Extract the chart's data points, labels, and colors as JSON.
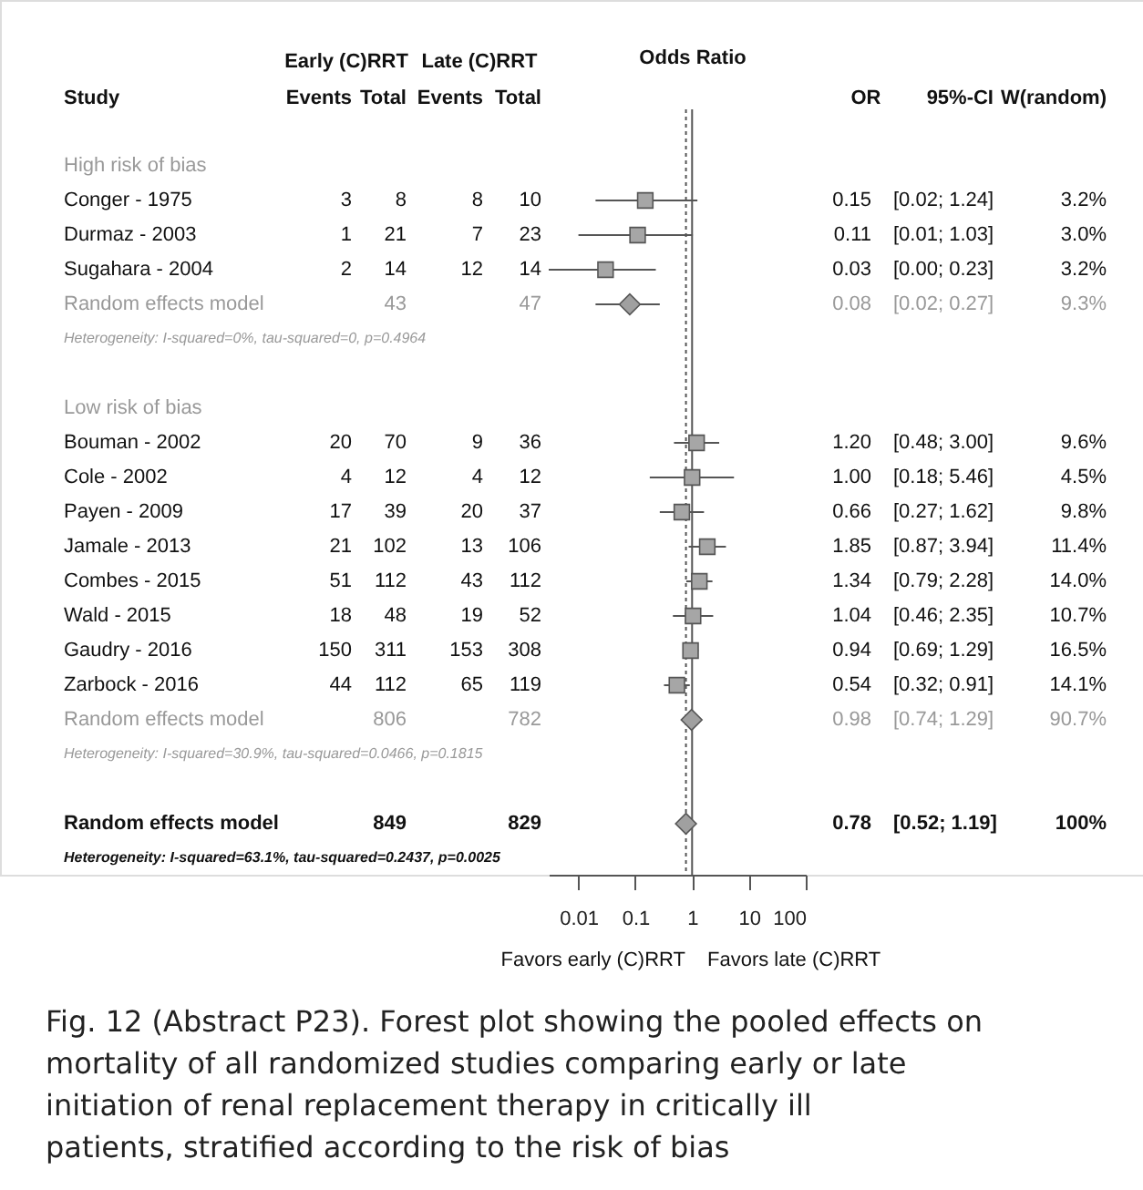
{
  "chart_data": {
    "type": "scatter",
    "categories": [
      "High risk of bias",
      "Conger - 1975",
      "Durmaz - 2003",
      "Sugahara - 2004",
      "Random effects model",
      "Heterogeneity: I-squared=0%, tau-squared=0, p=0.4964",
      null,
      "Low risk of bias",
      "Bouman - 2002",
      "Cole - 2002",
      "Payen - 2009",
      "Jamale - 2013",
      "Combes - 2015",
      "Wald - 2015",
      "Gaudry - 2016",
      "Zarbock - 2016",
      "Random effects model",
      "Heterogeneity: I-squared=30.9%, tau-squared=0.0466, p=0.1815",
      null,
      "Random effects model",
      "Heterogeneity: I-squared=63.1%, tau-squared=0.2437, p=0.0025"
    ],
    "series": [
      {
        "color": "#a6a6a6",
        "marker": "square",
        "values": [
          null,
          0.15,
          0.11,
          0.03,
          null,
          null,
          null,
          null,
          1.2,
          1.0,
          0.66,
          1.85,
          1.34,
          1.04,
          0.94,
          0.54,
          null,
          null,
          null,
          null,
          null
        ],
        "errors": [
          null,
          [
            0.02,
            1.24
          ],
          [
            0.01,
            1.03
          ],
          [
            0.003,
            0.23
          ],
          null,
          null,
          null,
          null,
          [
            0.48,
            3.0
          ],
          [
            0.18,
            5.46
          ],
          [
            0.27,
            1.62
          ],
          [
            0.87,
            3.94
          ],
          [
            0.79,
            2.28
          ],
          [
            0.46,
            2.35
          ],
          [
            0.69,
            1.29
          ],
          [
            0.32,
            0.91
          ],
          null,
          null,
          null,
          null,
          null
        ],
        "value_labels": [
          null,
          "0.15",
          "0.11",
          "0.03",
          null,
          null,
          null,
          null,
          "1.20",
          "1.00",
          "0.66",
          "1.85",
          "1.34",
          "1.04",
          "0.94",
          "0.54",
          null,
          null,
          null,
          null,
          null
        ]
      },
      {
        "color": "#a0a0a0",
        "marker": "diamond",
        "values": [
          null,
          null,
          null,
          null,
          0.08,
          null,
          null,
          null,
          null,
          null,
          null,
          null,
          null,
          null,
          null,
          null,
          0.98,
          null,
          null,
          0.78,
          null
        ],
        "errors": [
          null,
          null,
          null,
          null,
          [
            0.02,
            0.27
          ],
          null,
          null,
          null,
          null,
          null,
          null,
          null,
          null,
          null,
          null,
          null,
          [
            0.74,
            1.29
          ],
          null,
          null,
          [
            0.52,
            1.19
          ],
          null
        ]
      }
    ],
    "log": "x",
    "xlim": [
      0.003,
      100
    ],
    "xticks": [
      0.01,
      0.1,
      1,
      10,
      100
    ],
    "grid": false,
    "orientation": "horizontal",
    "ref_lines": [
      {
        "axis": "x",
        "value": 1,
        "color": "#555555",
        "line_style": "solid"
      },
      {
        "axis": "x",
        "value": 0.78,
        "color": "#555555",
        "line_style": "dotted"
      }
    ],
    "annotations": [
      "Study",
      "Early (C)RRT",
      "Late (C)RRT",
      "Events",
      "Total",
      "Events",
      "Total",
      "Odds Ratio",
      "OR",
      "95%-CI",
      "W(random)",
      "3",
      "8",
      "8",
      "10",
      "[0.02; 1.24]",
      "3.2%",
      "1",
      "21",
      "7",
      "23",
      "[0.01; 1.03]",
      "3.0%",
      "2",
      "14",
      "12",
      "14",
      "[0.00; 0.23]",
      "3.2%",
      "43",
      "47",
      "0.08",
      "[0.02; 0.27]",
      "9.3%",
      "20",
      "70",
      "9",
      "36",
      "[0.48; 3.00]",
      "9.6%",
      "4",
      "12",
      "4",
      "12",
      "[0.18; 5.46]",
      "4.5%",
      "17",
      "39",
      "20",
      "37",
      "[0.27; 1.62]",
      "9.8%",
      "21",
      "102",
      "13",
      "106",
      "[0.87; 3.94]",
      "11.4%",
      "51",
      "112",
      "43",
      "112",
      "[0.79; 2.28]",
      "14.0%",
      "18",
      "48",
      "19",
      "52",
      "[0.46; 2.35]",
      "10.7%",
      "150",
      "311",
      "153",
      "308",
      "[0.69; 1.29]",
      "16.5%",
      "44",
      "112",
      "65",
      "119",
      "[0.32; 0.91]",
      "14.1%",
      "806",
      "782",
      "0.98",
      "[0.74; 1.29]",
      "90.7%",
      "849",
      "829",
      "0.78",
      "[0.52; 1.19]",
      "100%",
      "Favors early (C)RRT",
      "Favors late (C)RRT",
      "Fig. 12 (Abstract P23). Forest plot showing the pooled effects on mortality of all randomized studies comparing early or late initiation of renal replacement therapy in critically ill patients, stratified according to the risk of bias"
    ]
  }
}
